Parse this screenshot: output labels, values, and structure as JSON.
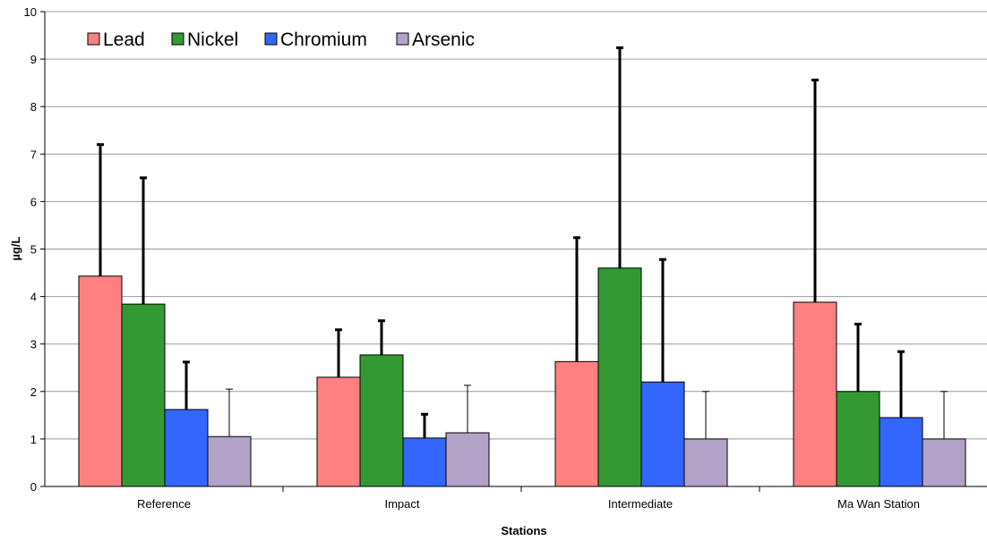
{
  "chart_data": {
    "type": "bar",
    "title": "",
    "xlabel": "Stations",
    "ylabel": "µg/L",
    "ylim": [
      0,
      10
    ],
    "yticks": [
      "0",
      "1",
      "2",
      "3",
      "4",
      "5",
      "6",
      "7",
      "8",
      "9",
      "10"
    ],
    "grid": true,
    "legend_position": "top-left",
    "categories": [
      "Reference",
      "Impact",
      "Intermediate",
      "Ma Wan Station"
    ],
    "series": [
      {
        "name": "Lead",
        "color": "#ff8080",
        "values": [
          4.43,
          2.3,
          2.63,
          3.88
        ],
        "error_upper": [
          7.2,
          3.3,
          5.24,
          8.56
        ]
      },
      {
        "name": "Nickel",
        "color": "#339933",
        "values": [
          3.84,
          2.77,
          4.6,
          2.0
        ],
        "error_upper": [
          6.5,
          3.49,
          9.24,
          3.42
        ]
      },
      {
        "name": "Chromium",
        "color": "#3366ff",
        "values": [
          1.62,
          1.02,
          2.2,
          1.45
        ],
        "error_upper": [
          2.62,
          1.52,
          4.78,
          2.84
        ]
      },
      {
        "name": "Arsenic",
        "color": "#b3a2c7",
        "values": [
          1.05,
          1.13,
          1.0,
          1.0
        ],
        "error_upper": [
          2.05,
          2.13,
          2.0,
          2.0
        ]
      }
    ]
  }
}
